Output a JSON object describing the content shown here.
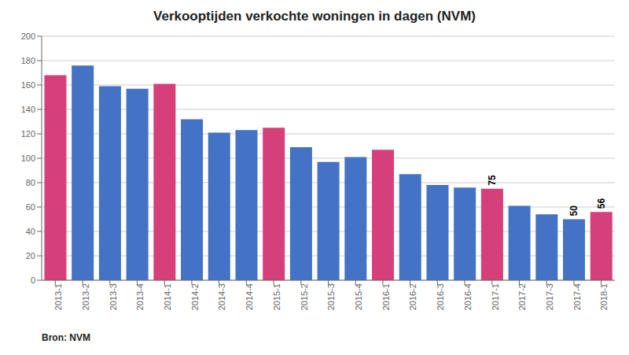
{
  "chart_data": {
    "type": "bar",
    "title": "Verkooptijden verkochte woningen in dagen (NVM)",
    "source": "Bron: NVM",
    "categories": [
      "2013-1",
      "2013-2",
      "2013-3",
      "2013-4",
      "2014-1",
      "2014-2",
      "2014-3",
      "2014-4",
      "2015-1",
      "2015-2",
      "2015-3",
      "2015-4",
      "2016-1",
      "2016-2",
      "2016-3",
      "2016-4",
      "2017-1",
      "2017-2",
      "2017-3",
      "2017-4",
      "2018-1"
    ],
    "values": [
      168,
      176,
      159,
      157,
      161,
      132,
      121,
      123,
      125,
      109,
      97,
      101,
      107,
      87,
      78,
      76,
      75,
      61,
      54,
      50,
      56
    ],
    "colors": [
      "#d6407a",
      "#4472c4",
      "#4472c4",
      "#4472c4",
      "#d6407a",
      "#4472c4",
      "#4472c4",
      "#4472c4",
      "#d6407a",
      "#4472c4",
      "#4472c4",
      "#4472c4",
      "#d6407a",
      "#4472c4",
      "#4472c4",
      "#4472c4",
      "#d6407a",
      "#4472c4",
      "#4472c4",
      "#4472c4",
      "#d6407a"
    ],
    "annotations": [
      {
        "category": "2017-1",
        "value": 75
      },
      {
        "category": "2017-4",
        "value": 50
      },
      {
        "category": "2018-1",
        "value": 56
      }
    ],
    "ylim": [
      0,
      200
    ],
    "yticks": [
      0,
      20,
      40,
      60,
      80,
      100,
      120,
      140,
      160,
      180,
      200
    ],
    "grid": true
  }
}
